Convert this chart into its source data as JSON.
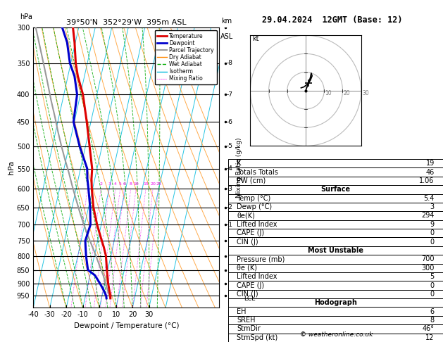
{
  "title_left": "39°50'N  352°29'W  395m ASL",
  "title_right": "29.04.2024  12GMT (Base: 12)",
  "xlabel": "Dewpoint / Temperature (°C)",
  "ylabel_left": "hPa",
  "pressure_levels": [
    300,
    350,
    400,
    450,
    500,
    550,
    600,
    650,
    700,
    750,
    800,
    850,
    900,
    950
  ],
  "p_min": 300,
  "p_max": 1000,
  "t_min": -40,
  "t_max": 35,
  "skew_factor": 37.5,
  "temp_profile_p": [
    960,
    950,
    925,
    900,
    870,
    850,
    800,
    770,
    750,
    700,
    650,
    600,
    575,
    550,
    500,
    450,
    400,
    370,
    350,
    320,
    300
  ],
  "temp_profile_t": [
    5.4,
    5.0,
    3.5,
    2.0,
    0.5,
    -0.5,
    -3.0,
    -5.5,
    -7.5,
    -12.5,
    -17.0,
    -20.5,
    -22.0,
    -23.0,
    -27.5,
    -32.5,
    -38.5,
    -44.0,
    -47.0,
    -50.5,
    -53.5
  ],
  "dewp_profile_p": [
    960,
    950,
    925,
    900,
    870,
    850,
    800,
    770,
    750,
    700,
    650,
    600,
    575,
    550,
    500,
    450,
    400,
    370,
    350,
    320,
    300
  ],
  "dewp_profile_t": [
    3.0,
    2.5,
    0.0,
    -3.0,
    -7.0,
    -12.0,
    -15.0,
    -16.5,
    -17.5,
    -16.5,
    -19.0,
    -22.5,
    -24.5,
    -26.0,
    -33.5,
    -40.5,
    -42.0,
    -46.0,
    -50.5,
    -55.0,
    -60.0
  ],
  "parcel_profile_p": [
    960,
    950,
    920,
    900,
    870,
    840,
    800,
    760,
    730,
    700,
    660,
    620,
    590,
    560,
    530,
    500,
    470,
    440,
    410,
    380,
    350,
    320,
    300
  ],
  "parcel_profile_t": [
    5.4,
    4.5,
    2.0,
    0.5,
    -2.0,
    -5.0,
    -9.0,
    -13.5,
    -17.0,
    -20.5,
    -25.0,
    -29.5,
    -33.0,
    -36.5,
    -40.5,
    -44.5,
    -48.5,
    -52.5,
    -57.0,
    -61.5,
    -66.5,
    -72.0,
    -76.0
  ],
  "color_temp": "#dd0000",
  "color_dewp": "#0000cc",
  "color_parcel": "#999999",
  "color_isotherm": "#00bbdd",
  "color_dry_adiabat": "#ff8800",
  "color_wet_adiabat": "#00aa00",
  "color_mixing_ratio": "#ee00ee",
  "mixing_ratio_vals": [
    1,
    2,
    3,
    4,
    5,
    6,
    8,
    10,
    15,
    20,
    25
  ],
  "km_labels": {
    "350": 8,
    "400": 7,
    "450": 6,
    "500": 5,
    "550": 4,
    "600": 3,
    "650": 2,
    "700": 1
  },
  "lcl_pressure": 962,
  "wind_strip_p": [
    300,
    350,
    400,
    450,
    500,
    550,
    600,
    650,
    700,
    750,
    800,
    850,
    900,
    950
  ],
  "wind_strip_t": [
    0,
    0,
    0,
    0,
    0,
    0,
    0,
    0,
    0,
    0,
    0,
    0,
    0,
    0
  ],
  "hodograph_u": [
    0.0,
    1.5,
    2.5,
    3.0,
    3.5,
    2.5,
    1.0,
    -1.0,
    -2.5
  ],
  "hodograph_v": [
    0.0,
    4.0,
    7.0,
    9.5,
    8.0,
    5.5,
    3.5,
    2.0,
    1.5
  ],
  "hodo_storm_u": 1.5,
  "hodo_storm_v": 4.0,
  "hodo_range": 30,
  "table_rows": [
    [
      "K",
      "19",
      false
    ],
    [
      "Totals Totals",
      "46",
      false
    ],
    [
      "PW (cm)",
      "1.06",
      false
    ],
    [
      "Surface",
      "",
      true
    ],
    [
      "Temp (°C)",
      "5.4",
      false
    ],
    [
      "Dewp (°C)",
      "3",
      false
    ],
    [
      "θe(K)",
      "294",
      false
    ],
    [
      "Lifted Index",
      "9",
      false
    ],
    [
      "CAPE (J)",
      "0",
      false
    ],
    [
      "CIN (J)",
      "0",
      false
    ],
    [
      "Most Unstable",
      "",
      true
    ],
    [
      "Pressure (mb)",
      "700",
      false
    ],
    [
      "θe (K)",
      "300",
      false
    ],
    [
      "Lifted Index",
      "5",
      false
    ],
    [
      "CAPE (J)",
      "0",
      false
    ],
    [
      "CIN (J)",
      "0",
      false
    ],
    [
      "Hodograph",
      "",
      true
    ],
    [
      "EH",
      "6",
      false
    ],
    [
      "SREH",
      "8",
      false
    ],
    [
      "StmDir",
      "46°",
      false
    ],
    [
      "StmSpd (kt)",
      "12",
      false
    ]
  ],
  "copyright": "© weatheronline.co.uk",
  "background_color": "#ffffff"
}
